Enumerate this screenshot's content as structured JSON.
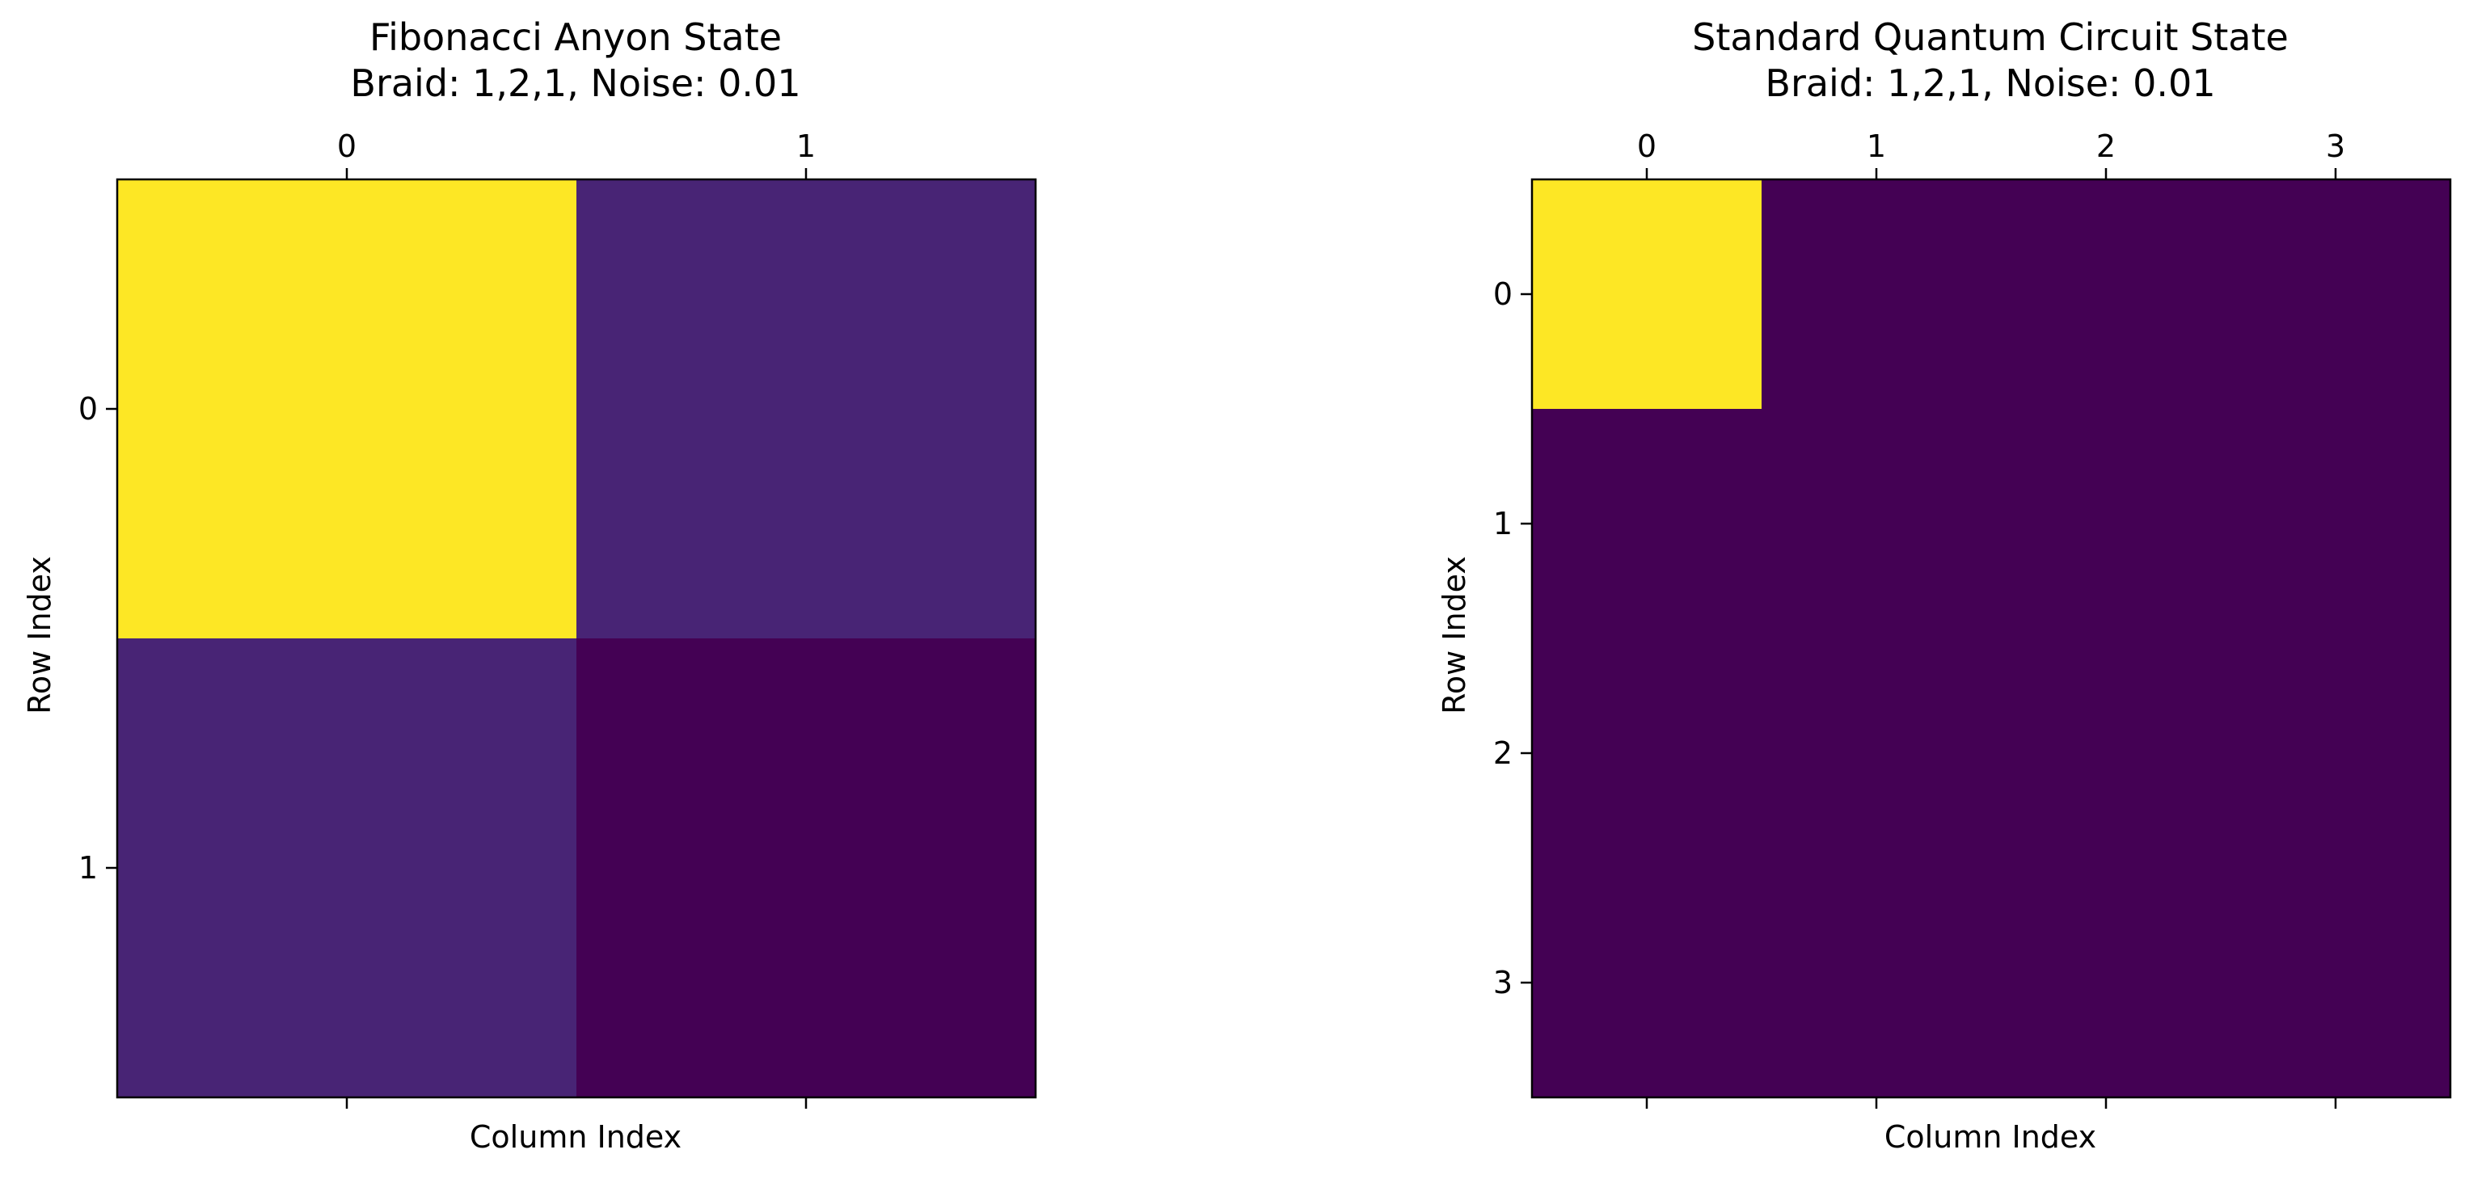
{
  "chart_data": [
    {
      "type": "heatmap",
      "title": "Fibonacci Anyon State",
      "subtitle": "Braid: 1,2,1, Noise: 0.01",
      "xlabel": "Column Index",
      "ylabel": "Row Index",
      "x_ticks": [
        "0",
        "1"
      ],
      "y_ticks": [
        "0",
        "1"
      ],
      "x_tick_position": "top",
      "colormap": "viridis",
      "color_range": [
        0,
        1
      ],
      "matrix": [
        [
          1.0,
          0.1
        ],
        [
          0.1,
          0.0
        ]
      ]
    },
    {
      "type": "heatmap",
      "title": "Standard Quantum Circuit State",
      "subtitle": "Braid: 1,2,1, Noise: 0.01",
      "xlabel": "Column Index",
      "ylabel": "Row Index",
      "x_ticks": [
        "0",
        "1",
        "2",
        "3"
      ],
      "y_ticks": [
        "0",
        "1",
        "2",
        "3"
      ],
      "x_tick_position": "top",
      "colormap": "viridis",
      "color_range": [
        0,
        1
      ],
      "matrix": [
        [
          1.0,
          0.0,
          0.0,
          0.0
        ],
        [
          0.0,
          0.0,
          0.0,
          0.0
        ],
        [
          0.0,
          0.0,
          0.0,
          0.0
        ],
        [
          0.0,
          0.0,
          0.0,
          0.0
        ]
      ]
    }
  ]
}
